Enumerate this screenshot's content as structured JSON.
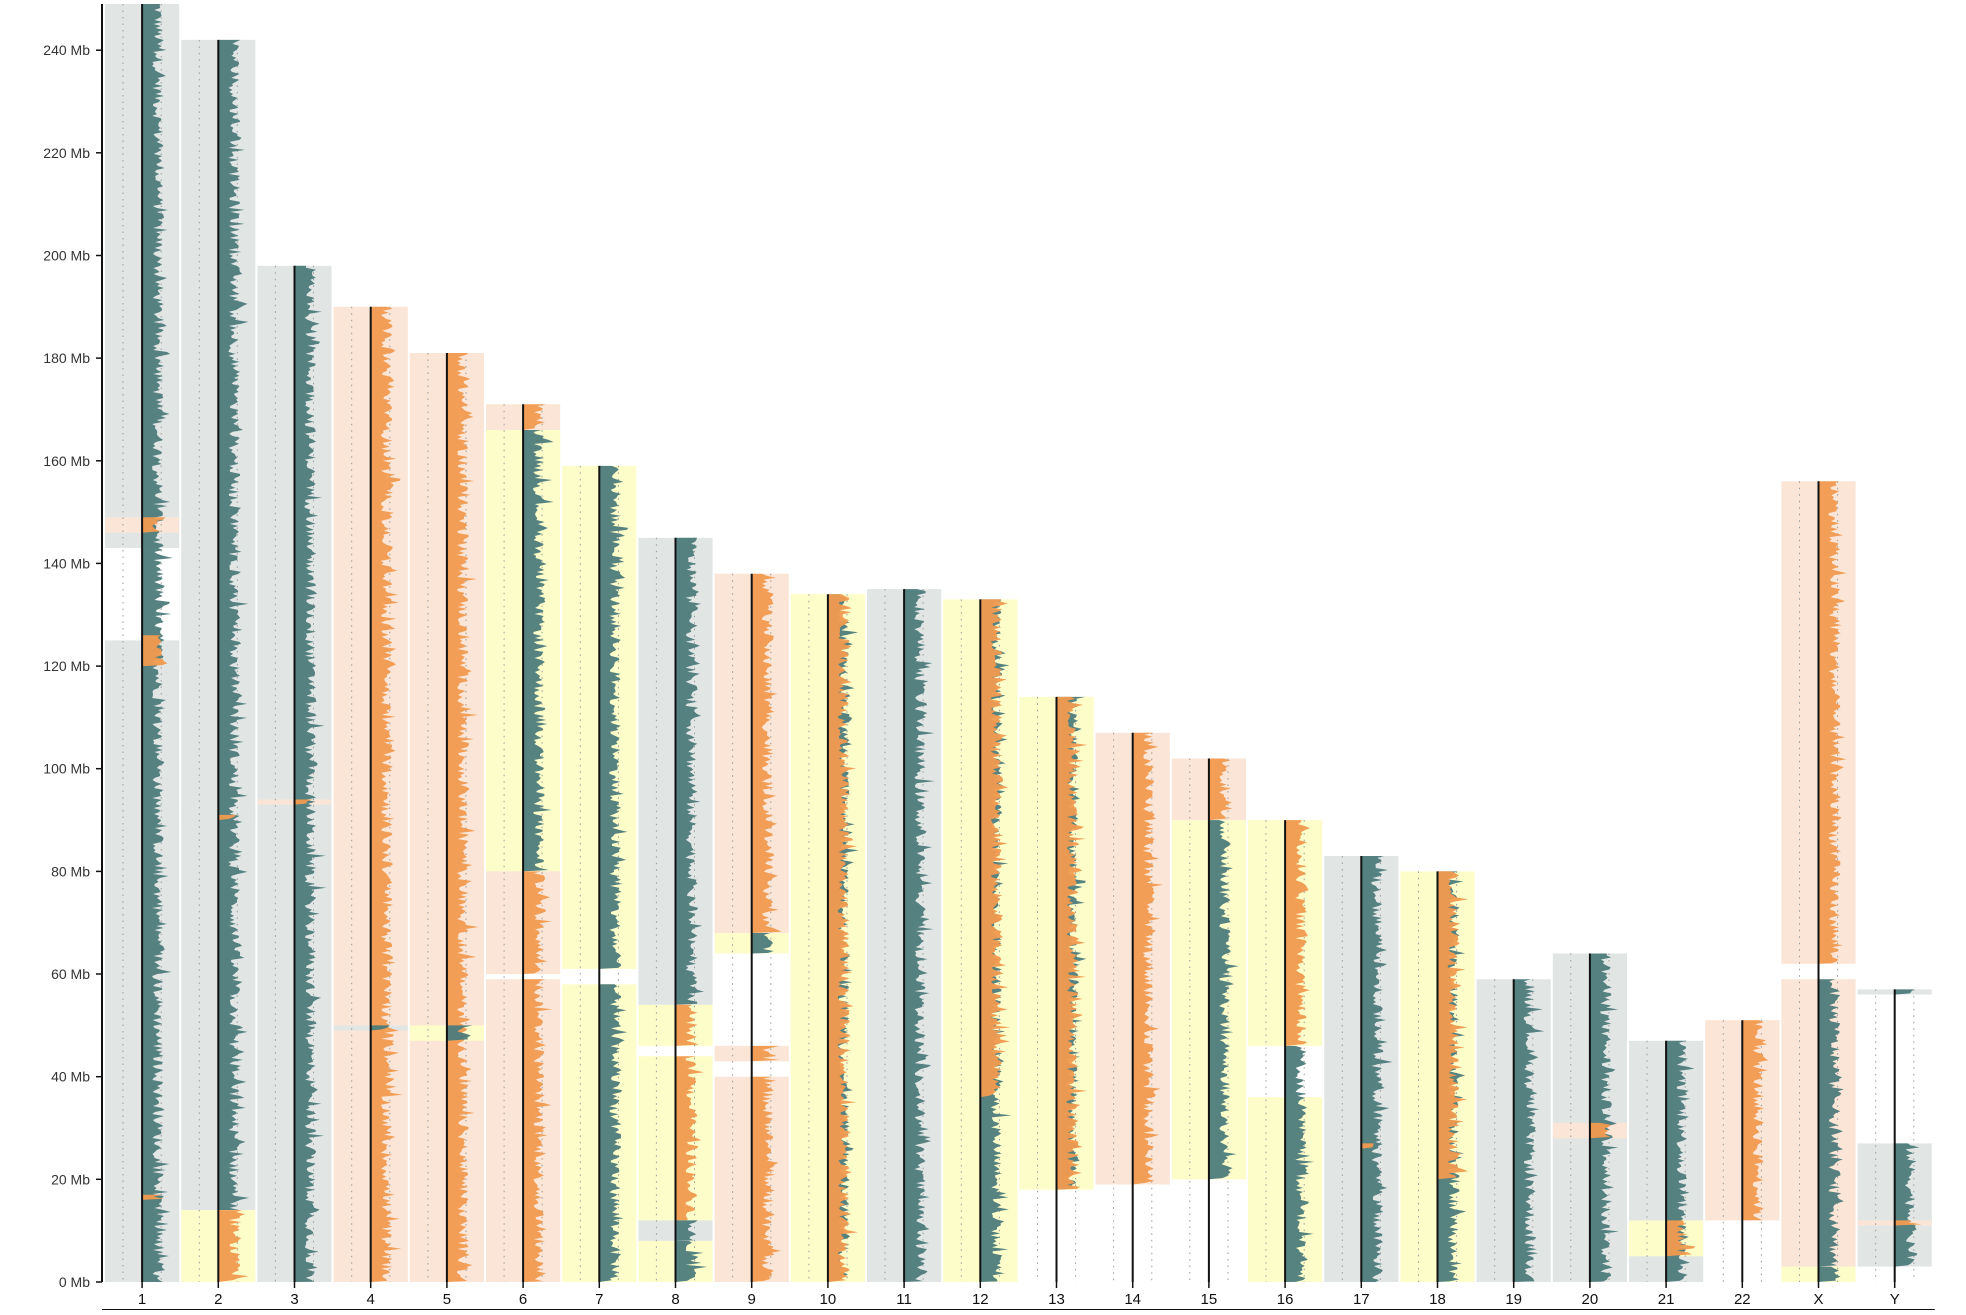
{
  "chart_data": {
    "type": "bar",
    "title": "",
    "xlabel": "",
    "ylabel": "",
    "y_unit": "Mb",
    "ylim": [
      0,
      249
    ],
    "y_ticks": [
      {
        "value": 0,
        "label": "0 Mb"
      },
      {
        "value": 20,
        "label": "20 Mb"
      },
      {
        "value": 40,
        "label": "40 Mb"
      },
      {
        "value": 60,
        "label": "60 Mb"
      },
      {
        "value": 80,
        "label": "80 Mb"
      },
      {
        "value": 100,
        "label": "100 Mb"
      },
      {
        "value": 120,
        "label": "120 Mb"
      },
      {
        "value": 140,
        "label": "140 Mb"
      },
      {
        "value": 160,
        "label": "160 Mb"
      },
      {
        "value": 180,
        "label": "180 Mb"
      },
      {
        "value": 200,
        "label": "200 Mb"
      },
      {
        "value": 220,
        "label": "220 Mb"
      },
      {
        "value": 240,
        "label": "240 Mb"
      }
    ],
    "grid": false,
    "legend": "none",
    "categories": [
      "1",
      "2",
      "3",
      "4",
      "5",
      "6",
      "7",
      "8",
      "9",
      "10",
      "11",
      "12",
      "13",
      "14",
      "15",
      "16",
      "17",
      "18",
      "19",
      "20",
      "21",
      "22",
      "X",
      "Y"
    ],
    "values": [
      249,
      242,
      198,
      190,
      181,
      171,
      159,
      145,
      138,
      134,
      135,
      133,
      114,
      107,
      102,
      90,
      83,
      80,
      59,
      64,
      47,
      51,
      156,
      57
    ],
    "colors": {
      "gray_trace": "#4d7b7b",
      "gray_fill": "#e1e6e5",
      "orange_trace": "#f19a4f",
      "orange_fill": "#fbe5d6",
      "yellow_fill": "#fdfdca",
      "axis": "#111111",
      "dotted_guide": "#9a9a9a"
    },
    "segments": [
      {
        "chrom": "1",
        "start": 0,
        "end": 249,
        "fill": "gray",
        "trace": "gray"
      },
      {
        "chrom": "1",
        "start": 120,
        "end": 126,
        "fill": "gray",
        "trace": "orange"
      },
      {
        "chrom": "1",
        "start": 125,
        "end": 143,
        "fill": "white",
        "trace": "none"
      },
      {
        "chrom": "1",
        "start": 146,
        "end": 149,
        "fill": "orange",
        "trace": "orange"
      },
      {
        "chrom": "1",
        "start": 16,
        "end": 17,
        "fill": "gray",
        "trace": "orange"
      },
      {
        "chrom": "2",
        "start": 14,
        "end": 242,
        "fill": "gray",
        "trace": "gray"
      },
      {
        "chrom": "2",
        "start": 0,
        "end": 14,
        "fill": "yellow",
        "trace": "orange"
      },
      {
        "chrom": "2",
        "start": 90,
        "end": 91,
        "fill": "gray",
        "trace": "orange"
      },
      {
        "chrom": "3",
        "start": 0,
        "end": 198,
        "fill": "gray",
        "trace": "gray"
      },
      {
        "chrom": "3",
        "start": 93,
        "end": 94,
        "fill": "orange",
        "trace": "orange"
      },
      {
        "chrom": "4",
        "start": 0,
        "end": 190,
        "fill": "orange",
        "trace": "orange"
      },
      {
        "chrom": "4",
        "start": 49,
        "end": 50,
        "fill": "gray",
        "trace": "gray"
      },
      {
        "chrom": "5",
        "start": 0,
        "end": 181,
        "fill": "orange",
        "trace": "orange"
      },
      {
        "chrom": "5",
        "start": 47,
        "end": 50,
        "fill": "yellow",
        "trace": "gray"
      },
      {
        "chrom": "6",
        "start": 80,
        "end": 166,
        "fill": "yellow",
        "trace": "gray"
      },
      {
        "chrom": "6",
        "start": 166,
        "end": 171,
        "fill": "orange",
        "trace": "orange"
      },
      {
        "chrom": "6",
        "start": 60,
        "end": 80,
        "fill": "orange",
        "trace": "orange"
      },
      {
        "chrom": "6",
        "start": 0,
        "end": 59,
        "fill": "orange",
        "trace": "orange"
      },
      {
        "chrom": "7",
        "start": 61,
        "end": 159,
        "fill": "yellow",
        "trace": "gray"
      },
      {
        "chrom": "7",
        "start": 0,
        "end": 58,
        "fill": "yellow",
        "trace": "gray"
      },
      {
        "chrom": "8",
        "start": 54,
        "end": 145,
        "fill": "gray",
        "trace": "gray"
      },
      {
        "chrom": "8",
        "start": 46,
        "end": 54,
        "fill": "yellow",
        "trace": "orange"
      },
      {
        "chrom": "8",
        "start": 12,
        "end": 44,
        "fill": "yellow",
        "trace": "orange"
      },
      {
        "chrom": "8",
        "start": 8,
        "end": 12,
        "fill": "gray",
        "trace": "gray"
      },
      {
        "chrom": "8",
        "start": 0,
        "end": 8,
        "fill": "yellow",
        "trace": "gray"
      },
      {
        "chrom": "9",
        "start": 68,
        "end": 138,
        "fill": "orange",
        "trace": "orange"
      },
      {
        "chrom": "9",
        "start": 64,
        "end": 68,
        "fill": "yellow",
        "trace": "gray"
      },
      {
        "chrom": "9",
        "start": 43,
        "end": 46,
        "fill": "orange",
        "trace": "orange"
      },
      {
        "chrom": "9",
        "start": 0,
        "end": 40,
        "fill": "orange",
        "trace": "orange"
      },
      {
        "chrom": "10",
        "start": 0,
        "end": 134,
        "fill": "yellow",
        "trace": "gray"
      },
      {
        "chrom": "10",
        "start": 0,
        "end": 134,
        "fill": "yellow",
        "trace": "orange"
      },
      {
        "chrom": "11",
        "start": 0,
        "end": 135,
        "fill": "gray",
        "trace": "gray"
      },
      {
        "chrom": "12",
        "start": 0,
        "end": 133,
        "fill": "yellow",
        "trace": "gray"
      },
      {
        "chrom": "12",
        "start": 36,
        "end": 133,
        "fill": "yellow",
        "trace": "orange"
      },
      {
        "chrom": "13",
        "start": 18,
        "end": 114,
        "fill": "yellow",
        "trace": "gray"
      },
      {
        "chrom": "13",
        "start": 18,
        "end": 114,
        "fill": "yellow",
        "trace": "orange"
      },
      {
        "chrom": "14",
        "start": 19,
        "end": 107,
        "fill": "orange",
        "trace": "orange"
      },
      {
        "chrom": "15",
        "start": 20,
        "end": 90,
        "fill": "yellow",
        "trace": "gray"
      },
      {
        "chrom": "15",
        "start": 90,
        "end": 102,
        "fill": "orange",
        "trace": "orange"
      },
      {
        "chrom": "16",
        "start": 0,
        "end": 46,
        "fill": "yellow",
        "trace": "gray"
      },
      {
        "chrom": "16",
        "start": 46,
        "end": 90,
        "fill": "yellow",
        "trace": "orange"
      },
      {
        "chrom": "16",
        "start": 36,
        "end": 46,
        "fill": "white",
        "trace": "none"
      },
      {
        "chrom": "17",
        "start": 0,
        "end": 83,
        "fill": "gray",
        "trace": "gray"
      },
      {
        "chrom": "17",
        "start": 26,
        "end": 27,
        "fill": "gray",
        "trace": "orange"
      },
      {
        "chrom": "18",
        "start": 0,
        "end": 80,
        "fill": "yellow",
        "trace": "gray"
      },
      {
        "chrom": "18",
        "start": 20,
        "end": 80,
        "fill": "yellow",
        "trace": "orange"
      },
      {
        "chrom": "19",
        "start": 0,
        "end": 59,
        "fill": "gray",
        "trace": "gray"
      },
      {
        "chrom": "20",
        "start": 0,
        "end": 64,
        "fill": "gray",
        "trace": "gray"
      },
      {
        "chrom": "20",
        "start": 28,
        "end": 31,
        "fill": "orange",
        "trace": "orange"
      },
      {
        "chrom": "21",
        "start": 0,
        "end": 47,
        "fill": "gray",
        "trace": "gray"
      },
      {
        "chrom": "21",
        "start": 5,
        "end": 12,
        "fill": "yellow",
        "trace": "orange"
      },
      {
        "chrom": "22",
        "start": 12,
        "end": 51,
        "fill": "orange",
        "trace": "orange"
      },
      {
        "chrom": "X",
        "start": 62,
        "end": 156,
        "fill": "orange",
        "trace": "orange"
      },
      {
        "chrom": "X",
        "start": 3,
        "end": 59,
        "fill": "orange",
        "trace": "gray"
      },
      {
        "chrom": "X",
        "start": 0,
        "end": 3,
        "fill": "yellow",
        "trace": "gray"
      },
      {
        "chrom": "Y",
        "start": 3,
        "end": 27,
        "fill": "gray",
        "trace": "gray"
      },
      {
        "chrom": "Y",
        "start": 11,
        "end": 12,
        "fill": "orange",
        "trace": "orange"
      },
      {
        "chrom": "Y",
        "start": 56,
        "end": 57,
        "fill": "gray",
        "trace": "gray"
      }
    ]
  }
}
